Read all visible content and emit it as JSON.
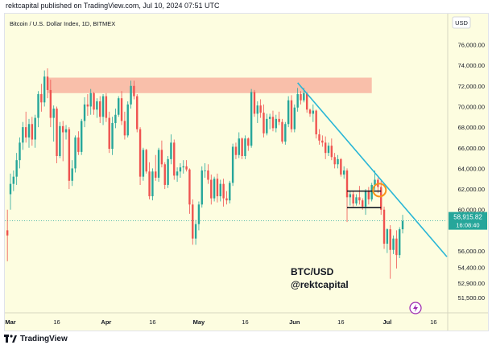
{
  "publisher_line": "rektcapital published on TradingView.com, Jul 10, 2024 07:51 UTC",
  "footer": {
    "brand": "TradingView"
  },
  "colors": {
    "background": "#fdfde0",
    "up_candle": "#26a69a",
    "down_candle": "#ef5350",
    "resistance_zone": "#f8b4a0",
    "trendline": "#29b6d6",
    "range_box": "#131722",
    "highlight_circle": "#f7931a",
    "current_price_badge": "#26a69a"
  },
  "chart_data": {
    "type": "candlestick",
    "title": "Bitcoin / U.S. Dollar Index, 1D, BITMEX",
    "currency_label": "USD",
    "annotation_lines": [
      "BTC/USD",
      "@rektcapital"
    ],
    "current_price": {
      "price": "58,915.82",
      "countdown": "16:08:40",
      "value": 58915.82
    },
    "ylim": [
      50000,
      79000
    ],
    "y_ticks": [
      {
        "label": "76,000.00",
        "value": 76000
      },
      {
        "label": "74,000.00",
        "value": 74000
      },
      {
        "label": "72,000.00",
        "value": 72000
      },
      {
        "label": "70,000.00",
        "value": 70000
      },
      {
        "label": "68,000.00",
        "value": 68000
      },
      {
        "label": "66,000.00",
        "value": 66000
      },
      {
        "label": "64,000.00",
        "value": 64000
      },
      {
        "label": "62,000.00",
        "value": 62000
      },
      {
        "label": "60,000.00",
        "value": 60000
      },
      {
        "label": "56,000.00",
        "value": 56000
      },
      {
        "label": "54,400.00",
        "value": 54400
      },
      {
        "label": "52,900.00",
        "value": 52900
      },
      {
        "label": "51,500.00",
        "value": 51500
      }
    ],
    "x_ticks": [
      {
        "label": "Mar",
        "day": 0,
        "bold": true
      },
      {
        "label": "16",
        "day": 15,
        "bold": false
      },
      {
        "label": "Apr",
        "day": 31,
        "bold": true
      },
      {
        "label": "16",
        "day": 46,
        "bold": false
      },
      {
        "label": "May",
        "day": 61,
        "bold": true
      },
      {
        "label": "16",
        "day": 76,
        "bold": false
      },
      {
        "label": "Jun",
        "day": 92,
        "bold": true
      },
      {
        "label": "16",
        "day": 107,
        "bold": false
      },
      {
        "label": "Jul",
        "day": 122,
        "bold": true
      },
      {
        "label": "16",
        "day": 137,
        "bold": false
      }
    ],
    "resistance_zone": {
      "from_day": 12,
      "to_day": 117,
      "low": 71300,
      "high": 72800
    },
    "trendline": {
      "from": {
        "day": 93,
        "price": 72300
      },
      "to": {
        "day": 138,
        "price": 56600
      }
    },
    "range_box": {
      "from_day": 109,
      "to_day": 120,
      "high": 61800,
      "low": 60200
    },
    "highlight_circle": {
      "day": 119.5,
      "price": 61900
    },
    "candles": [
      [
        -1,
        58000,
        60000,
        55000,
        57500
      ],
      [
        0,
        61500,
        63500,
        60000,
        62500
      ],
      [
        1,
        62500,
        63800,
        61800,
        63200
      ],
      [
        2,
        63200,
        65500,
        62400,
        64800
      ],
      [
        3,
        64800,
        67000,
        64000,
        66500
      ],
      [
        4,
        66500,
        68500,
        65800,
        68000
      ],
      [
        5,
        68000,
        69500,
        66500,
        67000
      ],
      [
        6,
        67000,
        68800,
        66000,
        68300
      ],
      [
        7,
        68300,
        69000,
        66200,
        66800
      ],
      [
        8,
        66800,
        69200,
        66000,
        68900
      ],
      [
        9,
        68900,
        71500,
        68000,
        71200
      ],
      [
        10,
        71200,
        72200,
        69500,
        70400
      ],
      [
        11,
        70400,
        73500,
        70000,
        72900
      ],
      [
        12,
        72900,
        73700,
        70800,
        71600
      ],
      [
        13,
        71600,
        72600,
        68000,
        68900
      ],
      [
        14,
        68900,
        70100,
        66600,
        69800
      ],
      [
        15,
        69800,
        70000,
        64500,
        65200
      ],
      [
        16,
        65200,
        68500,
        65000,
        68100
      ],
      [
        17,
        68100,
        68600,
        64700,
        67500
      ],
      [
        18,
        67500,
        68200,
        66800,
        67800
      ],
      [
        19,
        67800,
        68000,
        62000,
        62800
      ],
      [
        20,
        62800,
        64800,
        62300,
        64000
      ],
      [
        21,
        64000,
        67200,
        63600,
        67000
      ],
      [
        22,
        67000,
        67600,
        65300,
        65600
      ],
      [
        23,
        65600,
        68800,
        65300,
        68600
      ],
      [
        24,
        68600,
        70900,
        68000,
        70200
      ],
      [
        25,
        70200,
        71200,
        69100,
        70000
      ],
      [
        26,
        70000,
        71700,
        69200,
        71300
      ],
      [
        27,
        71300,
        71400,
        69200,
        69700
      ],
      [
        28,
        69700,
        70800,
        68900,
        70500
      ],
      [
        29,
        70500,
        71000,
        68400,
        69000
      ],
      [
        30,
        69000,
        71200,
        68200,
        71000
      ],
      [
        31,
        71000,
        71300,
        68500,
        68900
      ],
      [
        32,
        68900,
        69500,
        65500,
        65900
      ],
      [
        33,
        65900,
        69000,
        65300,
        68400
      ],
      [
        34,
        68400,
        69800,
        67900,
        69200
      ],
      [
        35,
        69200,
        71000,
        69000,
        70800
      ],
      [
        36,
        70800,
        71500,
        68200,
        68600
      ],
      [
        37,
        68600,
        69500,
        66800,
        67200
      ],
      [
        38,
        67200,
        70500,
        67000,
        70200
      ],
      [
        39,
        70200,
        72500,
        69800,
        72000
      ],
      [
        40,
        72000,
        72500,
        70700,
        71000
      ],
      [
        41,
        71000,
        71200,
        67500,
        67800
      ],
      [
        42,
        67800,
        68000,
        62400,
        63200
      ],
      [
        43,
        63200,
        66000,
        62800,
        65800
      ],
      [
        44,
        65800,
        65900,
        63500,
        63700
      ],
      [
        45,
        63700,
        64600,
        61000,
        61300
      ],
      [
        46,
        61300,
        64000,
        60900,
        63700
      ],
      [
        47,
        63700,
        65300,
        62800,
        63100
      ],
      [
        48,
        63100,
        66000,
        62700,
        65800
      ],
      [
        49,
        65800,
        66700,
        64100,
        64400
      ],
      [
        50,
        64400,
        64600,
        62000,
        62400
      ],
      [
        51,
        62400,
        65200,
        62100,
        64900
      ],
      [
        52,
        64900,
        67300,
        64400,
        66500
      ],
      [
        53,
        66500,
        66800,
        62900,
        63300
      ],
      [
        54,
        63300,
        64100,
        62700,
        63700
      ],
      [
        55,
        63700,
        64500,
        63100,
        64100
      ],
      [
        56,
        64100,
        64800,
        63500,
        64200
      ],
      [
        57,
        64200,
        64800,
        63700,
        63900
      ],
      [
        58,
        63900,
        64000,
        59600,
        60500
      ],
      [
        59,
        60500,
        61000,
        56600,
        57200
      ],
      [
        60,
        57200,
        59000,
        56600,
        58600
      ],
      [
        61,
        58600,
        60800,
        58000,
        60500
      ],
      [
        62,
        60500,
        64200,
        60200,
        63800
      ],
      [
        63,
        63800,
        64500,
        63100,
        63800
      ],
      [
        64,
        63800,
        64400,
        62500,
        62900
      ],
      [
        65,
        62900,
        63400,
        60500,
        61100
      ],
      [
        66,
        61100,
        63200,
        60800,
        63000
      ],
      [
        67,
        63000,
        63500,
        60700,
        61300
      ],
      [
        68,
        61300,
        62900,
        60800,
        62500
      ],
      [
        69,
        62500,
        63000,
        60300,
        61100
      ],
      [
        70,
        61100,
        61800,
        60500,
        60900
      ],
      [
        71,
        60900,
        62800,
        60600,
        62600
      ],
      [
        72,
        62600,
        66400,
        62300,
        66100
      ],
      [
        73,
        66100,
        66500,
        64900,
        65300
      ],
      [
        74,
        65300,
        67500,
        65000,
        66900
      ],
      [
        75,
        66900,
        67000,
        64900,
        65200
      ],
      [
        76,
        65200,
        67200,
        64900,
        66900
      ],
      [
        77,
        66900,
        67000,
        65700,
        66200
      ],
      [
        78,
        66200,
        71700,
        66000,
        71400
      ],
      [
        79,
        71400,
        71600,
        69000,
        69300
      ],
      [
        80,
        69300,
        70500,
        68400,
        70100
      ],
      [
        81,
        70100,
        70700,
        68900,
        69400
      ],
      [
        82,
        69400,
        70200,
        67000,
        67400
      ],
      [
        83,
        67400,
        69300,
        67200,
        68800
      ],
      [
        84,
        68800,
        69300,
        67800,
        69000
      ],
      [
        85,
        69000,
        69600,
        67600,
        67900
      ],
      [
        86,
        67900,
        69200,
        67500,
        68800
      ],
      [
        87,
        68800,
        69500,
        68200,
        68500
      ],
      [
        88,
        68500,
        68800,
        66400,
        66600
      ],
      [
        89,
        66600,
        68500,
        66300,
        68300
      ],
      [
        90,
        68300,
        71000,
        68000,
        70600
      ],
      [
        91,
        70600,
        71100,
        67500,
        67800
      ],
      [
        92,
        67800,
        70200,
        67500,
        69900
      ],
      [
        93,
        69900,
        71800,
        69500,
        71200
      ],
      [
        94,
        71200,
        71500,
        70200,
        70600
      ],
      [
        95,
        70600,
        71800,
        70400,
        71300
      ],
      [
        96,
        71300,
        71400,
        69400,
        69700
      ],
      [
        97,
        69700,
        69800,
        69000,
        69300
      ],
      [
        98,
        69300,
        70200,
        68500,
        69600
      ],
      [
        99,
        69600,
        69700,
        66900,
        67300
      ],
      [
        100,
        67300,
        67800,
        66300,
        66700
      ],
      [
        101,
        66700,
        67200,
        66100,
        66500
      ],
      [
        102,
        66500,
        67100,
        64900,
        65500
      ],
      [
        103,
        65500,
        66500,
        65200,
        66200
      ],
      [
        104,
        66200,
        66900,
        64800,
        65100
      ],
      [
        105,
        65100,
        65500,
        64000,
        64400
      ],
      [
        106,
        64400,
        65300,
        64000,
        64900
      ],
      [
        107,
        64900,
        65000,
        63200,
        63400
      ],
      [
        108,
        63400,
        64200,
        63000,
        63800
      ],
      [
        109,
        63800,
        64000,
        58800,
        61200
      ],
      [
        110,
        61200,
        61800,
        60400,
        61500
      ],
      [
        111,
        61500,
        61800,
        60300,
        60600
      ],
      [
        112,
        60600,
        61500,
        60400,
        61200
      ],
      [
        113,
        61200,
        62300,
        60500,
        60900
      ],
      [
        114,
        60900,
        61100,
        60000,
        60300
      ],
      [
        115,
        60300,
        62000,
        59500,
        61800
      ],
      [
        116,
        61800,
        62200,
        60500,
        61000
      ],
      [
        117,
        61000,
        62600,
        60800,
        62400
      ],
      [
        118,
        62400,
        63800,
        61900,
        62900
      ],
      [
        119,
        62900,
        63100,
        61600,
        62200
      ],
      [
        120,
        62200,
        62800,
        59500,
        60000
      ],
      [
        121,
        60000,
        60300,
        56200,
        56700
      ],
      [
        122,
        56700,
        58200,
        55800,
        58100
      ],
      [
        123,
        58100,
        58500,
        53300,
        56100
      ],
      [
        124,
        56100,
        57500,
        55700,
        57200
      ],
      [
        125,
        57200,
        58000,
        54300,
        55600
      ],
      [
        126,
        55600,
        58300,
        55300,
        58100
      ],
      [
        127,
        58100,
        59500,
        57700,
        58900
      ]
    ]
  }
}
